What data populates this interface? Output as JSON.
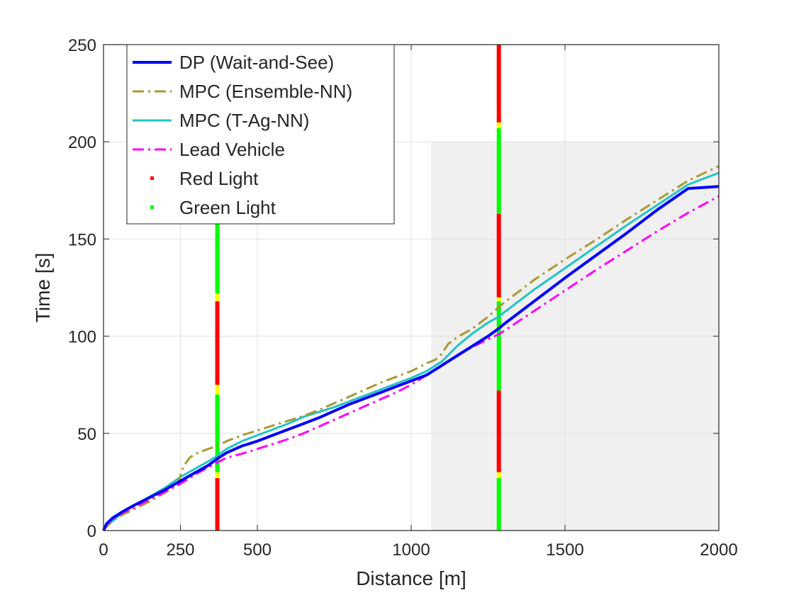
{
  "chart_data": {
    "type": "line",
    "xlabel": "Distance [m]",
    "ylabel": "Time [s]",
    "xlim": [
      0,
      2000
    ],
    "ylim": [
      0,
      250
    ],
    "xticks": [
      0,
      250,
      500,
      1000,
      1500,
      2000
    ],
    "yticks": [
      0,
      50,
      100,
      150,
      200,
      250
    ],
    "xtick_labels": [
      "0",
      "250",
      "500",
      "1000",
      "1500",
      "2000"
    ],
    "ytick_labels": [
      "0",
      "50",
      "100",
      "150",
      "200",
      "250"
    ],
    "grid": true,
    "legend_position": "top-left",
    "shaded_region": {
      "x": [
        1065,
        2000
      ],
      "y": [
        0,
        200
      ],
      "color": "#f0f0f0"
    },
    "series": [
      {
        "name": "DP (Wait-and-See)",
        "color": "#0000ff",
        "style": "solid",
        "x": [
          0,
          10,
          30,
          60,
          100,
          150,
          200,
          250,
          300,
          340,
          370,
          400,
          450,
          500,
          550,
          600,
          650,
          700,
          750,
          800,
          850,
          900,
          950,
          1000,
          1050,
          1100,
          1150,
          1200,
          1250,
          1285,
          1300,
          1400,
          1500,
          1600,
          1700,
          1800,
          1900,
          2000
        ],
        "y": [
          0,
          3.5,
          6.5,
          9.5,
          13,
          17,
          21,
          25.5,
          30,
          33.5,
          37,
          40,
          43.5,
          46,
          49,
          52,
          55,
          58,
          61.5,
          65,
          68,
          71,
          74,
          77,
          80,
          85,
          90,
          95,
          100,
          104,
          106,
          118,
          130,
          141.5,
          153,
          165,
          176,
          177
        ]
      },
      {
        "name": "MPC (Ensemble-NN)",
        "color": "#aa9933",
        "style": "dashdot",
        "x": [
          0,
          10,
          30,
          60,
          100,
          150,
          200,
          240,
          260,
          280,
          300,
          340,
          370,
          400,
          450,
          500,
          550,
          600,
          650,
          700,
          750,
          800,
          850,
          900,
          950,
          1000,
          1050,
          1080,
          1100,
          1120,
          1150,
          1200,
          1250,
          1285,
          1300,
          1400,
          1500,
          1600,
          1700,
          1800,
          1900,
          2000
        ],
        "y": [
          0,
          2,
          5,
          8,
          11,
          15,
          19.5,
          23.5,
          33,
          37.5,
          39.5,
          42,
          43.5,
          46,
          49,
          51.5,
          54,
          56.5,
          59,
          62,
          65.5,
          69,
          72.5,
          76,
          79,
          82,
          86,
          88,
          91,
          96,
          99.5,
          104,
          110,
          115,
          117,
          129,
          139.5,
          149.5,
          160,
          170,
          180,
          187.5
        ]
      },
      {
        "name": "MPC (T-Ag-NN)",
        "color": "#22c4c4",
        "style": "solid",
        "x": [
          0,
          10,
          30,
          60,
          100,
          150,
          200,
          250,
          300,
          340,
          370,
          400,
          450,
          500,
          550,
          600,
          650,
          700,
          750,
          800,
          850,
          900,
          950,
          1000,
          1050,
          1100,
          1150,
          1200,
          1250,
          1285,
          1300,
          1400,
          1500,
          1600,
          1700,
          1800,
          1900,
          2000
        ],
        "y": [
          0,
          2,
          5,
          9,
          13,
          17.5,
          22,
          27.5,
          32,
          35.5,
          38.5,
          42,
          46,
          49,
          52,
          55,
          58.5,
          61,
          63.5,
          66.5,
          69.5,
          72.5,
          75.5,
          78.5,
          82,
          87,
          95,
          101.5,
          107,
          110,
          112,
          124,
          135,
          146,
          157,
          167.5,
          178,
          184
        ]
      },
      {
        "name": "Lead Vehicle",
        "color": "#ff00ff",
        "style": "dashdot",
        "x": [
          0,
          10,
          30,
          60,
          100,
          150,
          200,
          250,
          300,
          340,
          370,
          400,
          450,
          500,
          550,
          600,
          650,
          700,
          750,
          800,
          850,
          900,
          950,
          1000,
          1050,
          1100,
          1150,
          1200,
          1250,
          1285,
          1300,
          1400,
          1500,
          1600,
          1700,
          1800,
          1900,
          2000
        ],
        "y": [
          0,
          3,
          6,
          9,
          12,
          16,
          20,
          24,
          29,
          32.5,
          35,
          37.5,
          39.5,
          42,
          44.5,
          47,
          50,
          53.5,
          57,
          60.5,
          64,
          67.5,
          71,
          75,
          80,
          85,
          90,
          94.5,
          98.5,
          101,
          102.5,
          113,
          123.5,
          134,
          144,
          154,
          163.5,
          172
        ]
      }
    ],
    "traffic_lights": [
      {
        "x": 370,
        "segments": [
          {
            "from": 0,
            "to": 27,
            "state": "red"
          },
          {
            "from": 27,
            "to": 30,
            "state": "yellow"
          },
          {
            "from": 30,
            "to": 70,
            "state": "green"
          },
          {
            "from": 70,
            "to": 75,
            "state": "yellow"
          },
          {
            "from": 75,
            "to": 118,
            "state": "red"
          },
          {
            "from": 118,
            "to": 122,
            "state": "yellow"
          },
          {
            "from": 122,
            "to": 250,
            "state": "green"
          }
        ]
      },
      {
        "x": 1285,
        "segments": [
          {
            "from": 0,
            "to": 27,
            "state": "green"
          },
          {
            "from": 27,
            "to": 30,
            "state": "yellow"
          },
          {
            "from": 30,
            "to": 72,
            "state": "red"
          },
          {
            "from": 72,
            "to": 118,
            "state": "green"
          },
          {
            "from": 118,
            "to": 120,
            "state": "yellow"
          },
          {
            "from": 120,
            "to": 163,
            "state": "red"
          },
          {
            "from": 163,
            "to": 207,
            "state": "green"
          },
          {
            "from": 207,
            "to": 210,
            "state": "yellow"
          },
          {
            "from": 210,
            "to": 250,
            "state": "red"
          }
        ]
      }
    ],
    "light_colors": {
      "red": "#ff0000",
      "green": "#00ff00",
      "yellow": "#ffff00"
    },
    "legend": [
      {
        "label": "DP (Wait-and-See)",
        "color": "#0000ff",
        "kind": "line",
        "style": "solid"
      },
      {
        "label": "MPC (Ensemble-NN)",
        "color": "#aa9933",
        "kind": "line",
        "style": "dashdot"
      },
      {
        "label": "MPC (T-Ag-NN)",
        "color": "#22c4c4",
        "kind": "line",
        "style": "solid"
      },
      {
        "label": "Lead Vehicle",
        "color": "#ff00ff",
        "kind": "line",
        "style": "dashdot"
      },
      {
        "label": "Red Light",
        "color": "#ff0000",
        "kind": "marker"
      },
      {
        "label": "Green Light",
        "color": "#00ff00",
        "kind": "marker"
      }
    ]
  }
}
